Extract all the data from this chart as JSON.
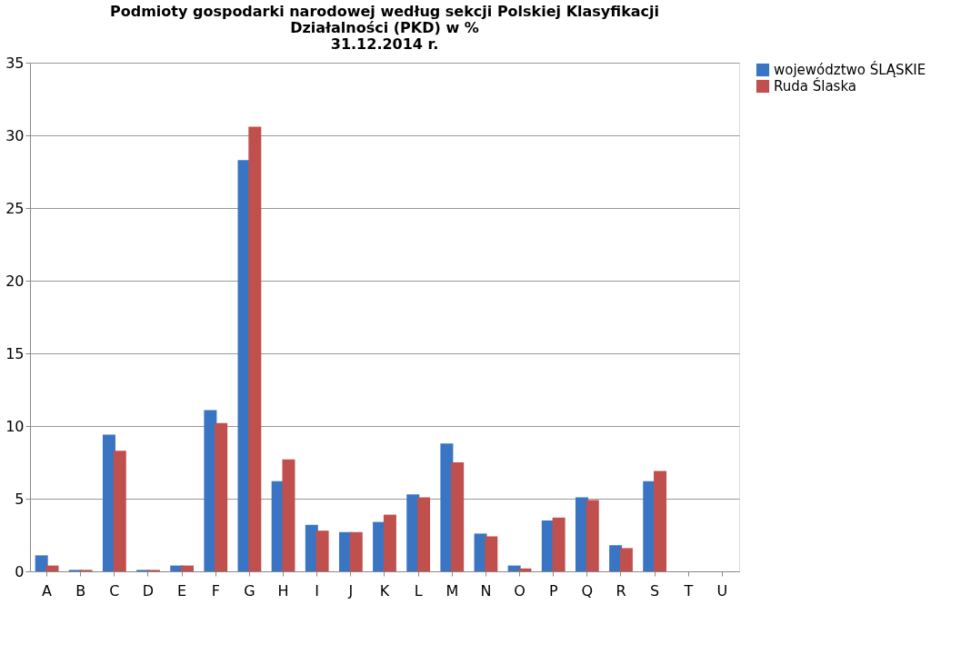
{
  "chart_data": {
    "type": "bar",
    "title": [
      "Podmioty gospodarki narodowej według sekcji Polskiej Klasyfikacji",
      "Działalności (PKD) w %",
      "31.12.2014 r."
    ],
    "categories": [
      "A",
      "B",
      "C",
      "D",
      "E",
      "F",
      "G",
      "H",
      "I",
      "J",
      "K",
      "L",
      "M",
      "N",
      "O",
      "P",
      "Q",
      "R",
      "S",
      "T",
      "U"
    ],
    "series": [
      {
        "name": "województwo ŚLĄSKIE",
        "color": "#3a75c4",
        "values": [
          1.1,
          0.1,
          9.4,
          0.1,
          0.4,
          11.1,
          28.3,
          6.2,
          3.2,
          2.7,
          3.4,
          5.3,
          8.8,
          2.6,
          0.4,
          3.5,
          5.1,
          1.8,
          6.2,
          null,
          null
        ]
      },
      {
        "name": "Ruda Ślaska",
        "color": "#c0504d",
        "values": [
          0.4,
          0.1,
          8.3,
          0.1,
          0.4,
          10.2,
          30.6,
          7.7,
          2.8,
          2.7,
          3.9,
          5.1,
          7.5,
          2.4,
          0.2,
          3.7,
          4.9,
          1.6,
          6.9,
          null,
          null
        ]
      }
    ],
    "ylim": [
      0,
      35
    ],
    "yticks": [
      0,
      5,
      10,
      15,
      20,
      25,
      30,
      35
    ],
    "grid": "y",
    "legend": "right"
  }
}
